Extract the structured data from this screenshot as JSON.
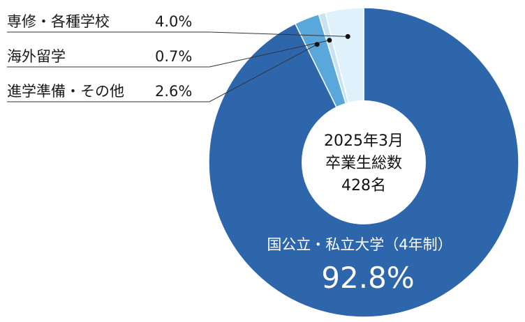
{
  "chart_data": {
    "type": "pie",
    "center_label": [
      "2025年3月",
      "卒業生総数",
      "428名"
    ],
    "colors": [
      "#2d66aa",
      "#5aa8db",
      "#c7e3f3",
      "#dff2fb"
    ],
    "slices": [
      {
        "label": "国公立・私立大学（4年制）",
        "value": 92.8,
        "value_label": "92.8%"
      },
      {
        "label": "進学準備・その他",
        "value": 2.6,
        "value_label": "2.6%"
      },
      {
        "label": "海外留学",
        "value": 0.7,
        "value_label": "0.7%"
      },
      {
        "label": "専修・各種学校",
        "value": 4.0,
        "value_label": "4.0%"
      }
    ]
  }
}
